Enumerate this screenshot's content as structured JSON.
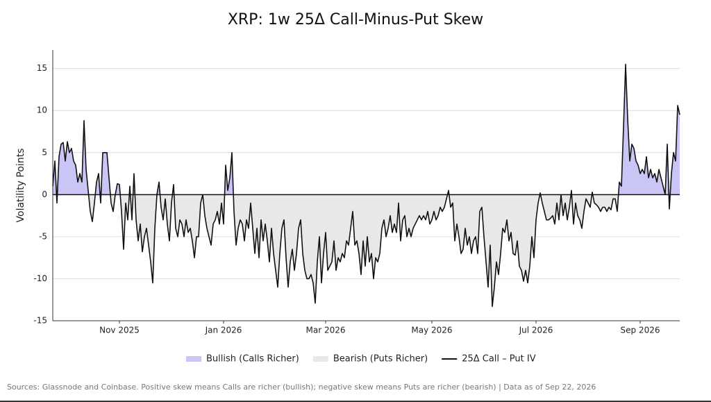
{
  "chart_data": {
    "type": "line",
    "title": "XRP: 1w 25Δ Call-Minus-Put Skew",
    "y_label": "Volatility Points",
    "source": "Sources: Glassnode and Coinbase. Positive skew means Calls are richer (bullish); negative skew means Puts are richer (bearish) | Data as of Sep 22, 2026",
    "xlim": [
      0,
      301
    ],
    "xticks": [
      {
        "value": 32,
        "label": "Nov 2025"
      },
      {
        "value": 82,
        "label": "Jan 2026"
      },
      {
        "value": 131,
        "label": "Mar 2026"
      },
      {
        "value": 182,
        "label": "May 2026"
      },
      {
        "value": 232,
        "label": "Jul 2026"
      },
      {
        "value": 282,
        "label": "Sep 2026"
      }
    ],
    "ylim": [
      -15,
      17.2
    ],
    "yticks": [
      -15,
      -10,
      -5,
      0,
      5,
      10,
      15
    ],
    "grid": true,
    "fills": [
      {
        "name": "Bullish (Calls Richer)",
        "color": "#c9c6f6"
      },
      {
        "name": "Bearish (Puts Richer)",
        "color": "#e8e8e8"
      }
    ],
    "series": [
      {
        "name": "25Δ Call – Put IV",
        "color": "#111111",
        "values": [
          1,
          4,
          -1,
          4.5,
          6,
          6.2,
          4,
          6.3,
          5,
          5.5,
          4,
          3.5,
          1.5,
          2.5,
          1.5,
          8.8,
          3,
          0.5,
          -2,
          -3.2,
          -1,
          1.5,
          2.5,
          -1,
          5,
          5,
          5,
          2,
          -1,
          -2,
          0,
          1.3,
          1.2,
          -2,
          -6.5,
          -1,
          -3,
          1,
          -3,
          2.5,
          -3,
          -5.5,
          -3.5,
          -6.8,
          -5,
          -4,
          -6,
          -8,
          -10.5,
          -4,
          0,
          1.5,
          -1.5,
          -3,
          -0.5,
          -3.5,
          -5.5,
          -1,
          1.2,
          -4,
          -5,
          -3,
          -3.5,
          -5,
          -3,
          -4.5,
          -4,
          -5.5,
          -7.5,
          -5,
          -5,
          -1,
          0,
          -2.5,
          -4,
          -5,
          -6,
          -3.5,
          -3,
          -2,
          -3.5,
          -1,
          -3.5,
          3.5,
          0.5,
          2,
          5,
          -2,
          -6,
          -4,
          -3,
          -3.5,
          -5.5,
          -3,
          -4,
          -1,
          -4,
          -7,
          -4,
          -7.5,
          -3,
          -5.5,
          -3.5,
          -5.5,
          -8,
          -4,
          -7,
          -9,
          -11,
          -7,
          -4,
          -3,
          -7.5,
          -11,
          -8,
          -6.5,
          -9,
          -7,
          -4,
          -3,
          -7,
          -9,
          -10,
          -10,
          -9.5,
          -10.5,
          -12.9,
          -8,
          -5,
          -10.5,
          -7,
          -4.5,
          -9,
          -8.5,
          -8,
          -5.5,
          -9,
          -7.5,
          -8,
          -7,
          -7.5,
          -5.5,
          -6,
          -4,
          -2,
          -6,
          -5.5,
          -7,
          -9.5,
          -5.5,
          -8.5,
          -5,
          -8,
          -7,
          -10,
          -7.5,
          -8,
          -7,
          -4,
          -3,
          -5,
          -4,
          -2.5,
          -4.5,
          -3.5,
          -4.5,
          -1,
          -5.5,
          -3,
          -2.5,
          -5,
          -4,
          -5,
          -4,
          -3.5,
          -3,
          -2.5,
          -3,
          -2.5,
          -3,
          -2,
          -3.5,
          -3,
          -2,
          -3,
          -2.5,
          -1.5,
          -2,
          -1.5,
          -0.5,
          0.5,
          -1.5,
          -1,
          -5.5,
          -3.5,
          -5,
          -7,
          -6.5,
          -4,
          -6,
          -5,
          -7,
          -5.5,
          -5,
          -7,
          -2,
          -1.5,
          -5,
          -8,
          -11,
          -6,
          -13.3,
          -11,
          -8,
          -9.5,
          -7,
          -4,
          -4.5,
          -3,
          -5.5,
          -4.5,
          -7,
          -7.2,
          -5.5,
          -8.5,
          -9,
          -10.3,
          -9,
          -10.5,
          -8.5,
          -5,
          -7.5,
          -3,
          -1,
          0.2,
          -1,
          -2,
          -3,
          -3,
          -2.8,
          -2.5,
          -3.5,
          -1,
          -3,
          0,
          -2.5,
          -1,
          -3,
          -1.5,
          0.5,
          -3.5,
          -1,
          -2.5,
          -3,
          -4,
          -2,
          -0.5,
          -1,
          -1.5,
          0.3,
          -1,
          -1.2,
          -1.5,
          -2,
          -1.5,
          -1.5,
          -2,
          -1.5,
          -1.8,
          -0.5,
          -0.5,
          -2,
          1.5,
          1,
          8,
          15.5,
          9,
          4,
          6,
          5.5,
          4,
          3.5,
          2.5,
          3,
          2.5,
          4.5,
          2,
          3,
          2,
          2.5,
          1.5,
          3,
          2,
          1,
          0,
          6,
          -1.7,
          2.5,
          5,
          4,
          10.6,
          9.5
        ]
      }
    ]
  }
}
